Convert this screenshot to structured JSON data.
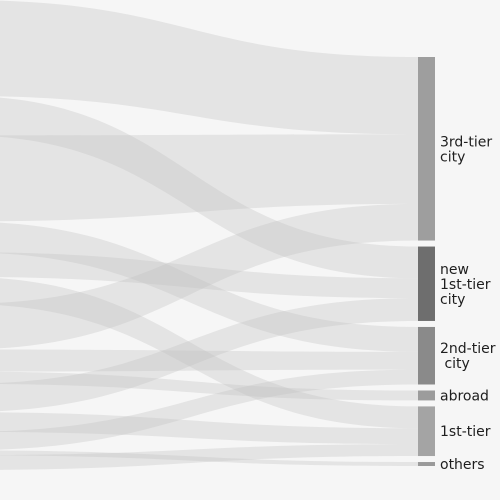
{
  "chart_data": {
    "type": "sankey",
    "title": "",
    "nodes": [
      {
        "id": "3rd",
        "lines": [
          "3rd-tier",
          "city"
        ],
        "value": 185,
        "color": "#9e9e9e"
      },
      {
        "id": "new1st",
        "lines": [
          "new",
          "1st-tier",
          "city"
        ],
        "value": 75,
        "color": "#6e6e6e"
      },
      {
        "id": "2nd",
        "lines": [
          "2nd-tier",
          " city"
        ],
        "value": 58,
        "color": "#8a8a8a"
      },
      {
        "id": "abroad",
        "lines": [
          "abroad"
        ],
        "value": 10,
        "color": "#9c9c9c"
      },
      {
        "id": "1st",
        "lines": [
          "1st-tier"
        ],
        "value": 50,
        "color": "#a4a4a4"
      },
      {
        "id": "others",
        "lines": [
          "others"
        ],
        "value": 4,
        "color": "#9a9a9a"
      }
    ],
    "flows": [
      {
        "target": "3rd",
        "value": 78
      },
      {
        "target": "3rd",
        "value": 70
      },
      {
        "target": "3rd",
        "value": 37
      },
      {
        "target": "new1st",
        "value": 32
      },
      {
        "target": "new1st",
        "value": 20
      },
      {
        "target": "new1st",
        "value": 23
      },
      {
        "target": "2nd",
        "value": 25
      },
      {
        "target": "2nd",
        "value": 18
      },
      {
        "target": "2nd",
        "value": 15
      },
      {
        "target": "abroad",
        "value": 10
      },
      {
        "target": "1st",
        "value": 22
      },
      {
        "target": "1st",
        "value": 16
      },
      {
        "target": "1st",
        "value": 12
      },
      {
        "target": "others",
        "value": 4
      }
    ]
  }
}
